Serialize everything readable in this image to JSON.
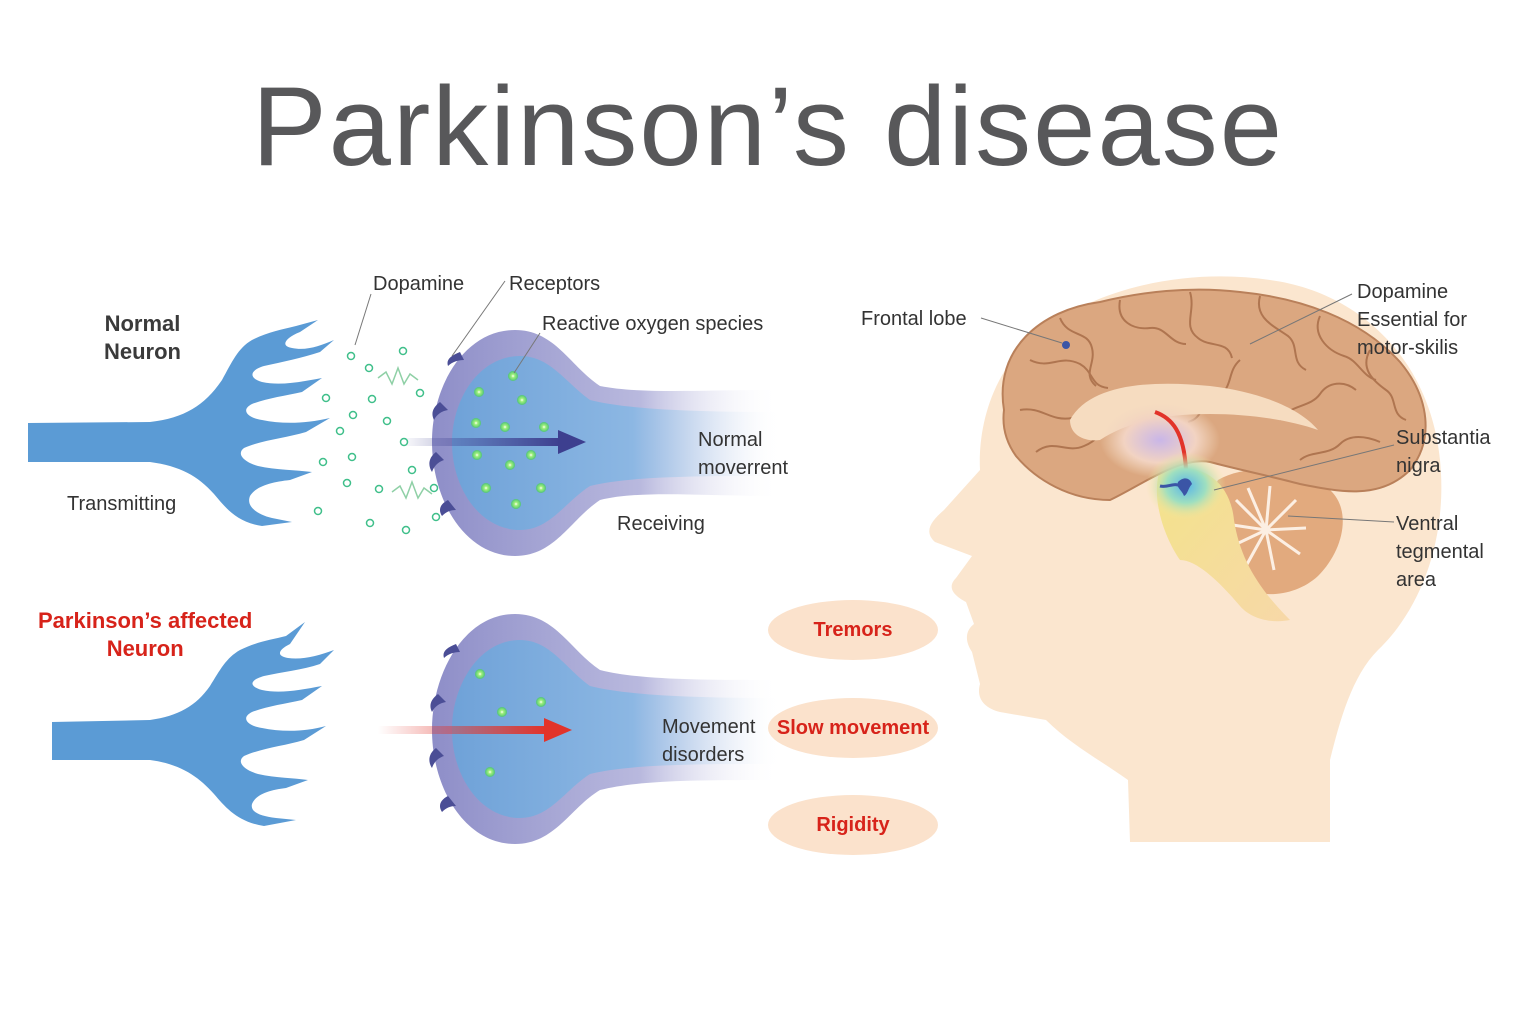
{
  "title": "Parkinson’s disease",
  "normal": {
    "heading_line1": "Normal",
    "heading_line2": "Neuron",
    "dopamine": "Dopamine",
    "receptors": "Receptors",
    "ros": "Reactive oxygen  species",
    "transmitting": "Transmitting",
    "receiving": "Receiving",
    "movement_line1": "Normal",
    "movement_line2": "moverrent"
  },
  "affected": {
    "heading_line1": "Parkinson’s  affected",
    "heading_line2": "Neuron",
    "movement_line1": "Movement",
    "movement_line2": "disorders"
  },
  "symptoms": [
    "Tremors",
    "Slow movement",
    "Rigidity"
  ],
  "brain": {
    "frontal_lobe": "Frontal lobe",
    "dopamine_line1": "Dopamine",
    "dopamine_line2": "Essential for",
    "dopamine_line3": "motor-skilis",
    "substantia_line1": "Substantia",
    "substantia_line2": "nigra",
    "vta_line1": "Ventral",
    "vta_line2": "tegmental",
    "vta_line3": "area"
  },
  "colors": {
    "neuron_blue": "#5b9bd5",
    "membrane_purple": "#8f8fc6",
    "dopamine_green": "#3fbf8a",
    "alert_red": "#d7231a",
    "head_skin": "#fbe6cf",
    "brain_tan": "#d9a77f"
  }
}
